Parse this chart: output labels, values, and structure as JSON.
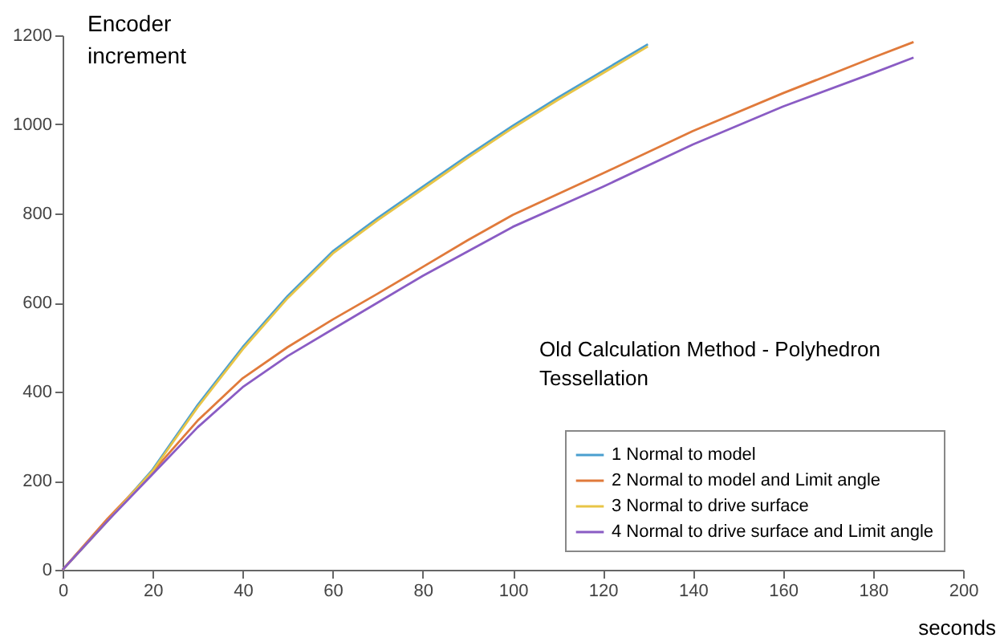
{
  "chart_data": {
    "type": "line",
    "xlabel": "seconds",
    "ylabel": "Encoder increment",
    "annotations": [
      "Old Calculation Method - Polyhedron Tessellation"
    ],
    "xlim": [
      0,
      200
    ],
    "ylim": [
      0,
      1200
    ],
    "xticks": [
      0,
      20,
      40,
      60,
      80,
      100,
      120,
      140,
      160,
      180,
      200
    ],
    "yticks": [
      0,
      200,
      400,
      600,
      800,
      1000,
      1200
    ],
    "grid": false,
    "legend": "bottom right",
    "marker": "none",
    "line_style": "solid",
    "series": [
      {
        "name": "1 Normal to model",
        "color": "#4a9fcf",
        "x": [
          0,
          10,
          20,
          30,
          40,
          50,
          60,
          70,
          80,
          90,
          100,
          110,
          120,
          130
        ],
        "values": [
          0,
          110,
          225,
          370,
          500,
          615,
          715,
          790,
          860,
          930,
          997,
          1060,
          1120,
          1180
        ]
      },
      {
        "name": "2 Normal to model and Limit angle",
        "color": "#e07a3b",
        "x": [
          0,
          10,
          20,
          30,
          40,
          50,
          60,
          70,
          80,
          90,
          100,
          120,
          140,
          160,
          180,
          189
        ],
        "values": [
          0,
          115,
          220,
          335,
          430,
          500,
          562,
          620,
          680,
          740,
          797,
          890,
          985,
          1070,
          1150,
          1185
        ]
      },
      {
        "name": "3 Normal to drive surface",
        "color": "#e8c547",
        "x": [
          0,
          10,
          20,
          30,
          40,
          50,
          60,
          70,
          80,
          90,
          100,
          110,
          120,
          130
        ],
        "values": [
          0,
          110,
          222,
          365,
          495,
          610,
          710,
          785,
          855,
          925,
          992,
          1055,
          1115,
          1175
        ]
      },
      {
        "name": "4 Normal to drive surface and Limit angle",
        "color": "#8a5cc4",
        "x": [
          0,
          10,
          20,
          30,
          40,
          50,
          60,
          70,
          80,
          90,
          100,
          120,
          140,
          160,
          180,
          189
        ],
        "values": [
          0,
          110,
          215,
          320,
          410,
          480,
          540,
          600,
          660,
          715,
          770,
          860,
          955,
          1040,
          1115,
          1150
        ]
      }
    ]
  }
}
